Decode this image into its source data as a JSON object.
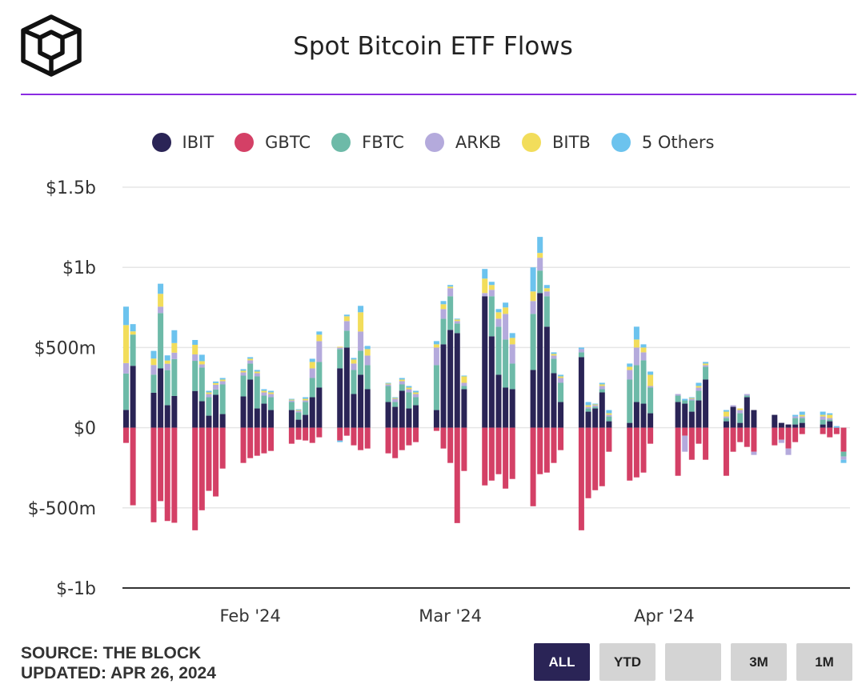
{
  "header": {
    "title": "Spot Bitcoin ETF Flows",
    "accent": "#8a2be2"
  },
  "footer": {
    "source": "SOURCE: THE BLOCK",
    "updated": "UPDATED: APR 26, 2024",
    "ranges": [
      {
        "label": "ALL",
        "active": true
      },
      {
        "label": "YTD",
        "active": false
      },
      {
        "label": "",
        "active": false
      },
      {
        "label": "3M",
        "active": false
      },
      {
        "label": "1M",
        "active": false
      }
    ]
  },
  "chart_data": {
    "type": "bar",
    "stacked": true,
    "unit": "millions USD",
    "ylim": [
      -1000,
      1500
    ],
    "yticks": [
      {
        "v": 1500,
        "label": "$1.5b"
      },
      {
        "v": 1000,
        "label": "$1b"
      },
      {
        "v": 500,
        "label": "$500m"
      },
      {
        "v": 0,
        "label": "$0"
      },
      {
        "v": -500,
        "label": "$-500m"
      },
      {
        "v": -1000,
        "label": "$-1b"
      }
    ],
    "xticks": [
      {
        "day": 18,
        "label": "Feb '24"
      },
      {
        "day": 47,
        "label": "Mar '24"
      },
      {
        "day": 78,
        "label": "Apr '24"
      }
    ],
    "grid": true,
    "legend_position": "top-center",
    "series": [
      {
        "name": "IBIT",
        "color": "#2a2456"
      },
      {
        "name": "GBTC",
        "color": "#d44066"
      },
      {
        "name": "FBTC",
        "color": "#6dbaa8"
      },
      {
        "name": "ARKB",
        "color": "#b4aadc"
      },
      {
        "name": "BITB",
        "color": "#f2dd5b"
      },
      {
        "name": "5 Others",
        "color": "#6cc3ee"
      }
    ],
    "data": [
      {
        "day": 0,
        "IBIT": 111,
        "GBTC": -95,
        "FBTC": 227,
        "ARKB": 65,
        "BITB": 237,
        "5 Others": 115
      },
      {
        "day": 1,
        "IBIT": 386,
        "GBTC": -484,
        "FBTC": 195,
        "ARKB": 0,
        "BITB": 20,
        "5 Others": 45
      },
      {
        "day": 4,
        "IBIT": 218,
        "GBTC": -590,
        "FBTC": 113,
        "ARKB": 60,
        "BITB": 40,
        "5 Others": 48
      },
      {
        "day": 5,
        "IBIT": 370,
        "GBTC": -458,
        "FBTC": 345,
        "ARKB": 40,
        "BITB": 80,
        "5 Others": 63
      },
      {
        "day": 6,
        "IBIT": 140,
        "GBTC": -582,
        "FBTC": 219,
        "ARKB": 40,
        "BITB": 20,
        "5 Others": 32
      },
      {
        "day": 7,
        "IBIT": 198,
        "GBTC": -593,
        "FBTC": 230,
        "ARKB": 40,
        "BITB": 60,
        "5 Others": 80
      },
      {
        "day": 10,
        "IBIT": 229,
        "GBTC": -640,
        "FBTC": 188,
        "ARKB": 40,
        "BITB": 60,
        "5 Others": 30
      },
      {
        "day": 11,
        "IBIT": 165,
        "GBTC": -515,
        "FBTC": 210,
        "ARKB": 20,
        "BITB": 20,
        "5 Others": 40
      },
      {
        "day": 12,
        "IBIT": 75,
        "GBTC": -394,
        "FBTC": 115,
        "ARKB": 20,
        "BITB": 10,
        "5 Others": 10
      },
      {
        "day": 13,
        "IBIT": 205,
        "GBTC": -429,
        "FBTC": 33,
        "ARKB": 30,
        "BITB": 10,
        "5 Others": 10
      },
      {
        "day": 14,
        "IBIT": 85,
        "GBTC": -255,
        "FBTC": 185,
        "ARKB": 20,
        "BITB": 10,
        "5 Others": 10
      },
      {
        "day": 17,
        "IBIT": 195,
        "GBTC": -220,
        "FBTC": 130,
        "ARKB": 20,
        "BITB": 10,
        "5 Others": 10
      },
      {
        "day": 18,
        "IBIT": 300,
        "GBTC": -190,
        "FBTC": 100,
        "ARKB": 20,
        "BITB": 10,
        "5 Others": 10
      },
      {
        "day": 19,
        "IBIT": 120,
        "GBTC": -175,
        "FBTC": 200,
        "ARKB": 20,
        "BITB": 10,
        "5 Others": 10
      },
      {
        "day": 20,
        "IBIT": 150,
        "GBTC": -160,
        "FBTC": 50,
        "ARKB": 20,
        "BITB": 10,
        "5 Others": 10
      },
      {
        "day": 21,
        "IBIT": 110,
        "GBTC": -145,
        "FBTC": 80,
        "ARKB": 20,
        "BITB": 10,
        "5 Others": 10
      },
      {
        "day": 24,
        "IBIT": 110,
        "GBTC": -100,
        "FBTC": 50,
        "ARKB": 10,
        "BITB": 5,
        "5 Others": 5
      },
      {
        "day": 25,
        "IBIT": 50,
        "GBTC": -75,
        "FBTC": 45,
        "ARKB": 10,
        "BITB": 5,
        "5 Others": 5
      },
      {
        "day": 26,
        "IBIT": 80,
        "GBTC": -80,
        "FBTC": 80,
        "ARKB": 10,
        "BITB": 10,
        "5 Others": 10
      },
      {
        "day": 27,
        "IBIT": 190,
        "GBTC": -95,
        "FBTC": 120,
        "ARKB": 60,
        "BITB": 40,
        "5 Others": 20
      },
      {
        "day": 28,
        "IBIT": 250,
        "GBTC": -60,
        "FBTC": 160,
        "ARKB": 130,
        "BITB": 40,
        "5 Others": 20
      },
      {
        "day": 31,
        "IBIT": 370,
        "GBTC": -80,
        "FBTC": 120,
        "ARKB": 10,
        "BITB": 5,
        "5 Others": -10
      },
      {
        "day": 32,
        "IBIT": 500,
        "GBTC": -50,
        "FBTC": 105,
        "ARKB": 60,
        "BITB": 30,
        "5 Others": 10
      },
      {
        "day": 33,
        "IBIT": 210,
        "GBTC": -110,
        "FBTC": 150,
        "ARKB": 40,
        "BITB": 25,
        "5 Others": 10
      },
      {
        "day": 34,
        "IBIT": 330,
        "GBTC": -140,
        "FBTC": 150,
        "ARKB": 120,
        "BITB": 120,
        "5 Others": 40
      },
      {
        "day": 35,
        "IBIT": 240,
        "GBTC": -130,
        "FBTC": 150,
        "ARKB": 60,
        "BITB": 40,
        "5 Others": 20
      },
      {
        "day": 38,
        "IBIT": 160,
        "GBTC": -160,
        "FBTC": 100,
        "ARKB": 10,
        "BITB": 5,
        "5 Others": 5
      },
      {
        "day": 39,
        "IBIT": 130,
        "GBTC": -190,
        "FBTC": 30,
        "ARKB": 20,
        "BITB": 5,
        "5 Others": 5
      },
      {
        "day": 40,
        "IBIT": 230,
        "GBTC": -140,
        "FBTC": 40,
        "ARKB": 20,
        "BITB": 10,
        "5 Others": 10
      },
      {
        "day": 41,
        "IBIT": 120,
        "GBTC": -110,
        "FBTC": 100,
        "ARKB": 20,
        "BITB": 10,
        "5 Others": 10
      },
      {
        "day": 42,
        "IBIT": 140,
        "GBTC": -90,
        "FBTC": 50,
        "ARKB": 20,
        "BITB": 10,
        "5 Others": 10
      },
      {
        "day": 45,
        "IBIT": 110,
        "GBTC": -20,
        "FBTC": 280,
        "ARKB": 110,
        "BITB": 20,
        "5 Others": 20
      },
      {
        "day": 46,
        "IBIT": 520,
        "GBTC": -130,
        "FBTC": 160,
        "ARKB": 60,
        "BITB": 30,
        "5 Others": 20
      },
      {
        "day": 47,
        "IBIT": 610,
        "GBTC": -220,
        "FBTC": 210,
        "ARKB": 50,
        "BITB": 10,
        "5 Others": 10
      },
      {
        "day": 48,
        "IBIT": 590,
        "GBTC": -595,
        "FBTC": 60,
        "ARKB": 15,
        "BITB": 10,
        "5 Others": 5
      },
      {
        "day": 49,
        "IBIT": 240,
        "GBTC": -270,
        "FBTC": 20,
        "ARKB": 20,
        "BITB": 40,
        "5 Others": 5
      },
      {
        "day": 52,
        "IBIT": 820,
        "GBTC": -360,
        "FBTC": 0,
        "ARKB": 20,
        "BITB": 90,
        "5 Others": 60
      },
      {
        "day": 53,
        "IBIT": 570,
        "GBTC": -330,
        "FBTC": 250,
        "ARKB": 40,
        "BITB": 30,
        "5 Others": 20
      },
      {
        "day": 54,
        "IBIT": 330,
        "GBTC": -290,
        "FBTC": 300,
        "ARKB": 50,
        "BITB": 40,
        "5 Others": 20
      },
      {
        "day": 55,
        "IBIT": 250,
        "GBTC": -380,
        "FBTC": 300,
        "ARKB": 160,
        "BITB": 40,
        "5 Others": 30
      },
      {
        "day": 56,
        "IBIT": 240,
        "GBTC": -320,
        "FBTC": 160,
        "ARKB": 120,
        "BITB": 40,
        "5 Others": 30
      },
      {
        "day": 59,
        "IBIT": 360,
        "GBTC": -490,
        "FBTC": 350,
        "ARKB": 80,
        "BITB": 60,
        "5 Others": 150
      },
      {
        "day": 60,
        "IBIT": 840,
        "GBTC": -290,
        "FBTC": 140,
        "ARKB": 80,
        "BITB": 30,
        "5 Others": 100
      },
      {
        "day": 61,
        "IBIT": 630,
        "GBTC": -280,
        "FBTC": 190,
        "ARKB": 30,
        "BITB": 20,
        "5 Others": 20
      },
      {
        "day": 62,
        "IBIT": 340,
        "GBTC": -220,
        "FBTC": 90,
        "ARKB": 20,
        "BITB": 10,
        "5 Others": 10
      },
      {
        "day": 63,
        "IBIT": 160,
        "GBTC": -140,
        "FBTC": 120,
        "ARKB": 30,
        "BITB": 10,
        "5 Others": 10
      },
      {
        "day": 66,
        "IBIT": 440,
        "GBTC": -640,
        "FBTC": 30,
        "ARKB": 20,
        "BITB": 0,
        "5 Others": 10
      },
      {
        "day": 67,
        "IBIT": 100,
        "GBTC": -440,
        "FBTC": 20,
        "ARKB": 10,
        "BITB": 10,
        "5 Others": 20
      },
      {
        "day": 68,
        "IBIT": 120,
        "GBTC": -390,
        "FBTC": 10,
        "ARKB": 10,
        "BITB": 5,
        "5 Others": 5
      },
      {
        "day": 69,
        "IBIT": 220,
        "GBTC": -365,
        "FBTC": 20,
        "ARKB": 20,
        "BITB": 10,
        "5 Others": 10
      },
      {
        "day": 70,
        "IBIT": 40,
        "GBTC": -150,
        "FBTC": 30,
        "ARKB": 10,
        "BITB": 10,
        "5 Others": 20
      },
      {
        "day": 73,
        "IBIT": 30,
        "GBTC": -330,
        "FBTC": 270,
        "ARKB": 60,
        "BITB": 20,
        "5 Others": 20
      },
      {
        "day": 74,
        "IBIT": 160,
        "GBTC": -310,
        "FBTC": 230,
        "ARKB": 110,
        "BITB": 50,
        "5 Others": 80
      },
      {
        "day": 75,
        "IBIT": 150,
        "GBTC": -280,
        "FBTC": 270,
        "ARKB": 50,
        "BITB": 30,
        "5 Others": 20
      },
      {
        "day": 76,
        "IBIT": 90,
        "GBTC": -100,
        "FBTC": 160,
        "ARKB": 10,
        "BITB": 70,
        "5 Others": 20
      },
      {
        "day": 80,
        "IBIT": 160,
        "GBTC": -300,
        "FBTC": 40,
        "ARKB": 10,
        "BITB": 0,
        "5 Others": 0
      },
      {
        "day": 81,
        "IBIT": 150,
        "GBTC": -50,
        "FBTC": 20,
        "ARKB": -100,
        "BITB": 0,
        "5 Others": 10
      },
      {
        "day": 82,
        "IBIT": 100,
        "GBTC": -200,
        "FBTC": 70,
        "ARKB": 10,
        "BITB": 5,
        "5 Others": 5
      },
      {
        "day": 83,
        "IBIT": 170,
        "GBTC": -100,
        "FBTC": 60,
        "ARKB": 20,
        "BITB": 10,
        "5 Others": 20
      },
      {
        "day": 84,
        "IBIT": 300,
        "GBTC": -200,
        "FBTC": 80,
        "ARKB": 10,
        "BITB": 10,
        "5 Others": 10
      },
      {
        "day": 87,
        "IBIT": 40,
        "GBTC": -300,
        "FBTC": 20,
        "ARKB": 10,
        "BITB": 30,
        "5 Others": 10
      },
      {
        "day": 88,
        "IBIT": 130,
        "GBTC": -150,
        "FBTC": 0,
        "ARKB": 10,
        "BITB": 0,
        "5 Others": 0
      },
      {
        "day": 89,
        "IBIT": 30,
        "GBTC": -90,
        "FBTC": 60,
        "ARKB": 20,
        "BITB": 10,
        "5 Others": 0
      },
      {
        "day": 90,
        "IBIT": 190,
        "GBTC": -120,
        "FBTC": 10,
        "ARKB": 10,
        "BITB": 0,
        "5 Others": 0
      },
      {
        "day": 91,
        "IBIT": 110,
        "GBTC": -150,
        "FBTC": 0,
        "ARKB": -20,
        "BITB": 0,
        "5 Others": 0
      },
      {
        "day": 94,
        "IBIT": 80,
        "GBTC": -110,
        "FBTC": 0,
        "ARKB": 0,
        "BITB": 0,
        "5 Others": 0
      },
      {
        "day": 95,
        "IBIT": 30,
        "GBTC": -75,
        "FBTC": 0,
        "ARKB": -20,
        "BITB": 0,
        "5 Others": 0
      },
      {
        "day": 96,
        "IBIT": 20,
        "GBTC": -130,
        "FBTC": 0,
        "ARKB": -40,
        "BITB": 0,
        "5 Others": 0
      },
      {
        "day": 97,
        "IBIT": 20,
        "GBTC": -90,
        "FBTC": 40,
        "ARKB": 10,
        "BITB": 0,
        "5 Others": 10
      },
      {
        "day": 98,
        "IBIT": 30,
        "GBTC": -40,
        "FBTC": 30,
        "ARKB": 10,
        "BITB": 10,
        "5 Others": 20
      },
      {
        "day": 101,
        "IBIT": 20,
        "GBTC": -40,
        "FBTC": 30,
        "ARKB": 20,
        "BITB": 10,
        "5 Others": 20
      },
      {
        "day": 102,
        "IBIT": 40,
        "GBTC": -60,
        "FBTC": 10,
        "ARKB": 10,
        "BITB": 20,
        "5 Others": 10
      },
      {
        "day": 103,
        "IBIT": 0,
        "GBTC": -40,
        "FBTC": 0,
        "ARKB": 0,
        "BITB": 0,
        "5 Others": 10
      },
      {
        "day": 104,
        "IBIT": 0,
        "GBTC": -150,
        "FBTC": -30,
        "ARKB": -20,
        "BITB": 0,
        "5 Others": -20
      }
    ]
  }
}
